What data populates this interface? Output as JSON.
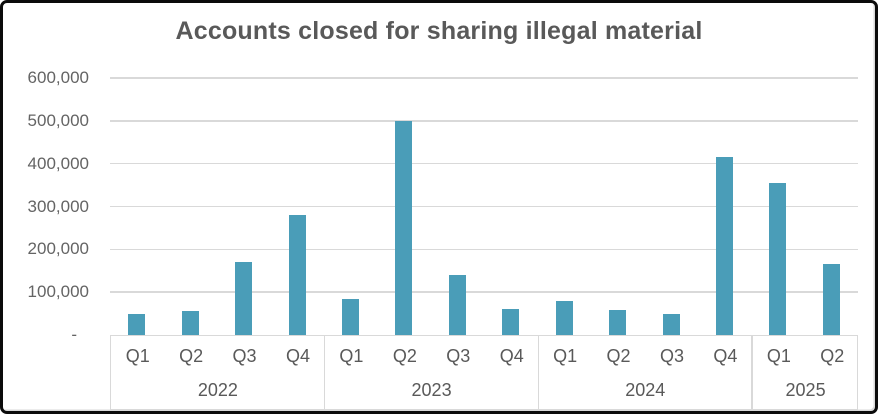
{
  "frame": {
    "background": "#ffffff",
    "border_color": "#0b0b0b",
    "inner_edge_color": "#d9d9d9"
  },
  "chart_data": {
    "type": "bar",
    "title": "Accounts closed for sharing illegal material",
    "xlabel": "",
    "ylabel": "",
    "ylim": [
      0,
      600000
    ],
    "grid": true,
    "legend": "none",
    "bar_color": "#4a9db8",
    "grid_color": "#d9d9d9",
    "title_color": "#595959",
    "label_color": "#595959",
    "yticks": [
      {
        "value": 0,
        "label": "-"
      },
      {
        "value": 100000,
        "label": "100,000"
      },
      {
        "value": 200000,
        "label": "200,000"
      },
      {
        "value": 300000,
        "label": "300,000"
      },
      {
        "value": 400000,
        "label": "400,000"
      },
      {
        "value": 500000,
        "label": "500,000"
      },
      {
        "value": 600000,
        "label": "600,000"
      }
    ],
    "groups": [
      {
        "year": "2022",
        "quarters": [
          "Q1",
          "Q2",
          "Q3",
          "Q4"
        ],
        "values": [
          50000,
          55000,
          170000,
          280000
        ]
      },
      {
        "year": "2023",
        "quarters": [
          "Q1",
          "Q2",
          "Q3",
          "Q4"
        ],
        "values": [
          85000,
          500000,
          140000,
          60000
        ]
      },
      {
        "year": "2024",
        "quarters": [
          "Q1",
          "Q2",
          "Q3",
          "Q4"
        ],
        "values": [
          80000,
          58000,
          50000,
          415000
        ]
      },
      {
        "year": "2025",
        "quarters": [
          "Q1",
          "Q2"
        ],
        "values": [
          355000,
          165000
        ]
      }
    ],
    "categories": [
      "2022 Q1",
      "2022 Q2",
      "2022 Q3",
      "2022 Q4",
      "2023 Q1",
      "2023 Q2",
      "2023 Q3",
      "2023 Q4",
      "2024 Q1",
      "2024 Q2",
      "2024 Q3",
      "2024 Q4",
      "2025 Q1",
      "2025 Q2"
    ],
    "values": [
      50000,
      55000,
      170000,
      280000,
      85000,
      500000,
      140000,
      60000,
      80000,
      58000,
      50000,
      415000,
      355000,
      165000
    ]
  }
}
